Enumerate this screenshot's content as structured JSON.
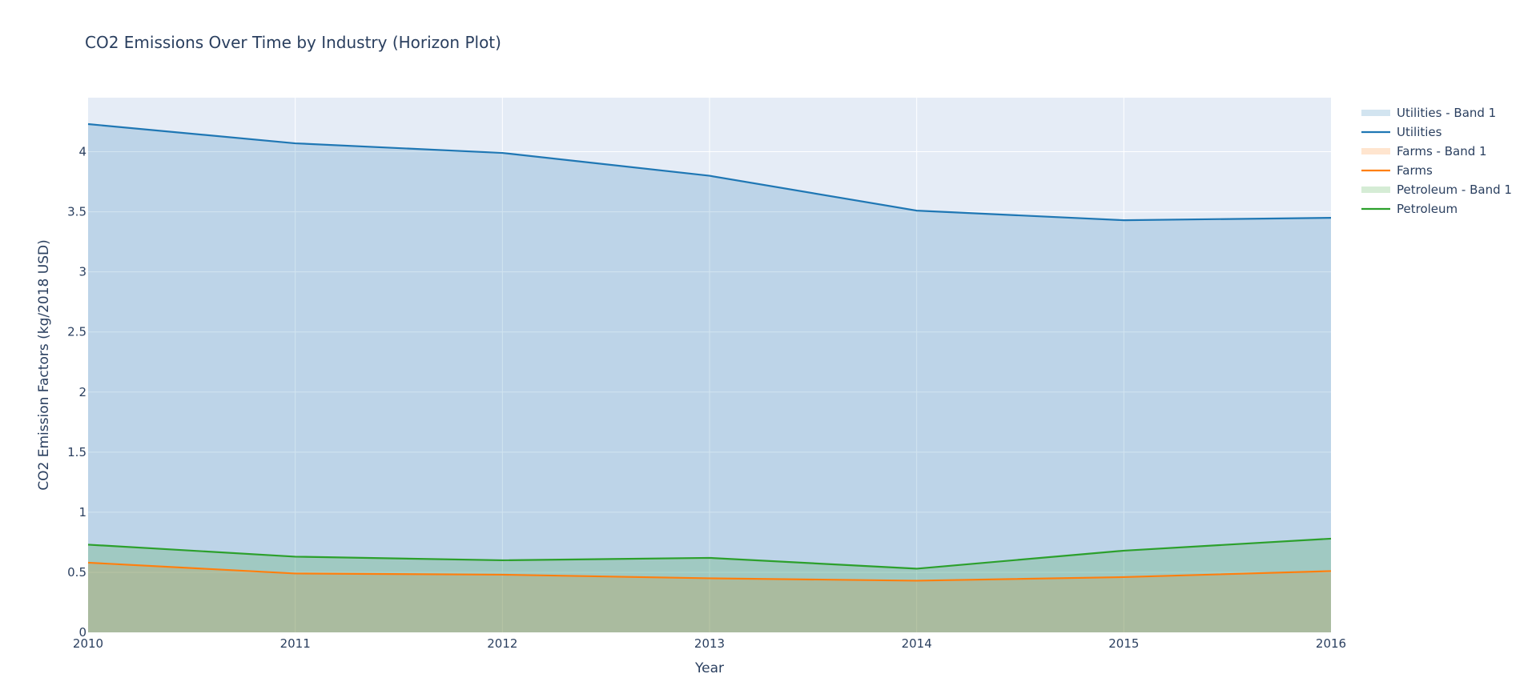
{
  "chart_data": {
    "type": "area",
    "title": "CO2 Emissions Over Time by Industry (Horizon Plot)",
    "xlabel": "Year",
    "ylabel": "CO2 Emission Factors (kg/2018 USD)",
    "x": [
      2010,
      2011,
      2012,
      2013,
      2014,
      2015,
      2016
    ],
    "xticks": [
      2010,
      2011,
      2012,
      2013,
      2014,
      2015,
      2016
    ],
    "yticks": [
      0,
      0.5,
      1,
      1.5,
      2,
      2.5,
      3,
      3.5,
      4
    ],
    "xlim": [
      2010,
      2016
    ],
    "ylim": [
      0,
      4.45
    ],
    "grid": true,
    "legend_position": "right",
    "plot_background": "#e5ecf6",
    "series": [
      {
        "name": "Utilities",
        "band_name": "Utilities - Band 1",
        "color": "#1f77b4",
        "fill_color": "rgba(31,119,180,0.2)",
        "values": [
          4.23,
          4.07,
          3.99,
          3.8,
          3.51,
          3.43,
          3.45
        ]
      },
      {
        "name": "Farms",
        "band_name": "Farms - Band 1",
        "color": "#ff7f0e",
        "fill_color": "rgba(255,127,14,0.2)",
        "values": [
          0.58,
          0.49,
          0.48,
          0.45,
          0.43,
          0.46,
          0.51
        ]
      },
      {
        "name": "Petroleum",
        "band_name": "Petroleum - Band 1",
        "color": "#2ca02c",
        "fill_color": "rgba(44,160,44,0.2)",
        "values": [
          0.73,
          0.63,
          0.6,
          0.62,
          0.53,
          0.68,
          0.78
        ]
      }
    ]
  }
}
